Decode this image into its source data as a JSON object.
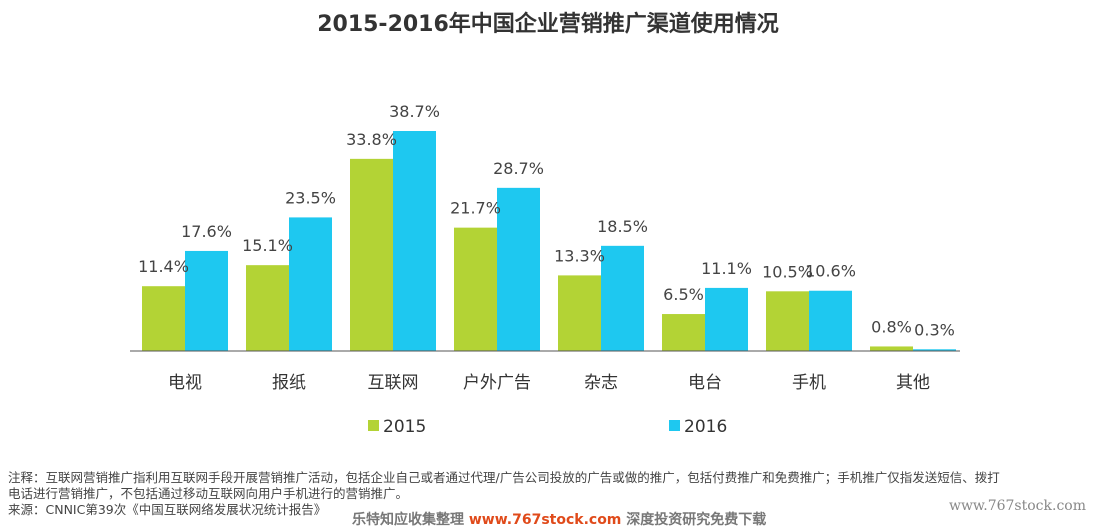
{
  "title": "2015-2016年中国企业营销推广渠道使用情况",
  "chart_data": {
    "type": "bar",
    "title": "2015-2016年中国企业营销推广渠道使用情况",
    "categories": [
      "电视",
      "报纸",
      "互联网",
      "户外广告",
      "杂志",
      "电台",
      "手机",
      "其他"
    ],
    "series": [
      {
        "name": "2015",
        "values": [
          11.4,
          15.1,
          33.8,
          21.7,
          13.3,
          6.5,
          10.5,
          0.8
        ],
        "labels": [
          "11.4%",
          "15.1%",
          "33.8%",
          "21.7%",
          "13.3%",
          "6.5%",
          "10.5%",
          "0.8%"
        ],
        "color": "#b3d335"
      },
      {
        "name": "2016",
        "values": [
          17.6,
          23.5,
          38.7,
          28.7,
          18.5,
          11.1,
          10.6,
          0.3
        ],
        "labels": [
          "17.6%",
          "23.5%",
          "38.7%",
          "28.7%",
          "18.5%",
          "11.1%",
          "10.6%",
          "0.3%"
        ],
        "color": "#1ec8f0"
      }
    ],
    "unit": "%",
    "ylim": [
      0,
      38.7
    ],
    "grid": false,
    "legend": "bottom"
  },
  "notes": {
    "line1": "注释：互联网营销推广指利用互联网手段开展营销推广活动，包括企业自己或者通过代理/广告公司投放的广告或做的推广，包括付费推广和免费推广；手机推广仅指发送短信、拨打",
    "line2": "电话进行营销推广，不包括通过移动互联网向用户手机进行的营销推广。",
    "source": "来源：CNNIC第39次《中国互联网络发展状况统计报告》"
  },
  "watermark": {
    "middle_prefix": "乐特知应收集整理",
    "middle_url": "www.767stock.com",
    "middle_suffix": "深度投资研究免费下载",
    "right": "www.767stock.com"
  },
  "colors": {
    "axis": "#555555",
    "text": "#333333"
  }
}
